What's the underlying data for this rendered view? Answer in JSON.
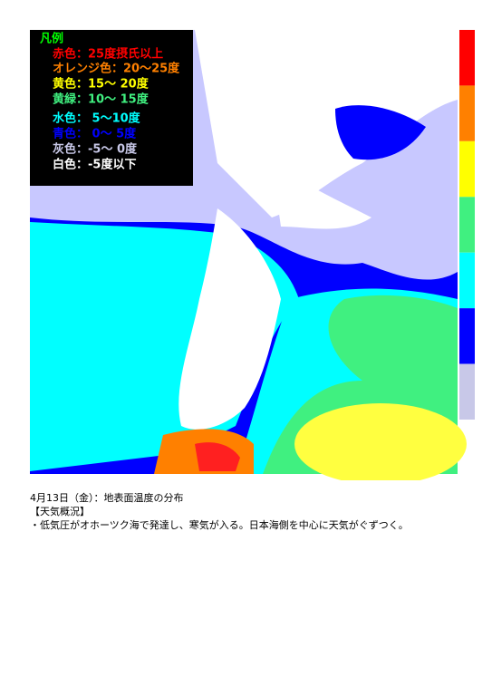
{
  "legend": {
    "title": "凡例",
    "items": [
      {
        "label": "赤色：25度摂氏以上",
        "color": "#ff0000"
      },
      {
        "label": "オレンジ色：20〜25度",
        "color": "#ff8000"
      },
      {
        "label": "黄色：15〜 20度",
        "color": "#ffff00"
      },
      {
        "label": "黄緑：10〜 15度",
        "color": "#40f080"
      },
      {
        "label": "水色： 5〜10度",
        "color": "#00ffff"
      },
      {
        "label": "青色： 0〜 5度",
        "color": "#0000ff"
      },
      {
        "label": "灰色：-5〜 0度",
        "color": "#c8c8e8"
      },
      {
        "label": "白色：-5度以下",
        "color": "#ffffff"
      }
    ]
  },
  "caption": {
    "date": "4月13日（金）：地表面温度の分布",
    "heading": "【天気概況】",
    "text": "・低気圧がオホーツク海で発達し、寒気が入る。日本海側を中心に天気がぐずつく。"
  }
}
